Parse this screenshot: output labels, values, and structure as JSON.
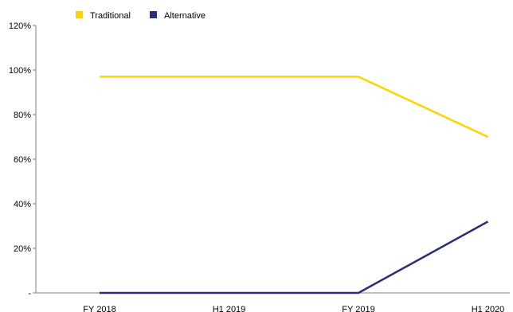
{
  "chart_data": {
    "type": "line",
    "categories": [
      "FY 2018",
      "H1 2019",
      "FY 2019",
      "H1 2020"
    ],
    "series": [
      {
        "name": "Traditional",
        "color": "#FFD200",
        "values": [
          97,
          97,
          97,
          70
        ]
      },
      {
        "name": "Alternative",
        "color": "#2B2D7A",
        "values": [
          0,
          0,
          0,
          32
        ]
      }
    ],
    "y_ticks": [
      {
        "value": 120,
        "label": "120%"
      },
      {
        "value": 100,
        "label": "100%"
      },
      {
        "value": 80,
        "label": "80%"
      },
      {
        "value": 60,
        "label": "60%"
      },
      {
        "value": 40,
        "label": "40%"
      },
      {
        "value": 20,
        "label": "20%"
      },
      {
        "value": 0,
        "label": "-"
      }
    ],
    "ylim": [
      0,
      120
    ],
    "grid": false,
    "legend_position": "top-left",
    "axis_color": "#808080"
  }
}
